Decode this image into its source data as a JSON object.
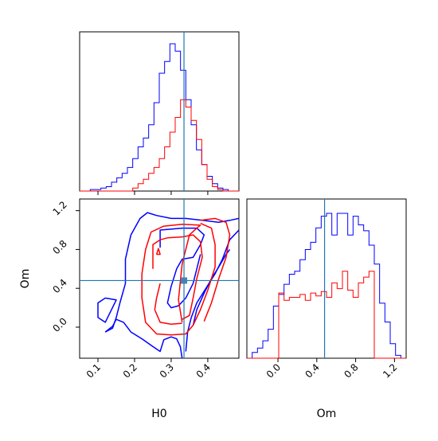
{
  "chart_data": {
    "type": "corner",
    "params": [
      "H0",
      "Om"
    ],
    "truth": {
      "H0": 0.335,
      "Om": 0.48
    },
    "colors": {
      "blue": "#0000ff",
      "red": "#ff0000",
      "truth": "#1f77b4"
    },
    "axes": {
      "H0": {
        "label": "H0",
        "range": [
          0.05,
          0.485
        ],
        "ticks": [
          "0.1",
          "0.2",
          "0.3",
          "0.4"
        ]
      },
      "Om": {
        "label": "Om",
        "range": [
          -0.32,
          1.32
        ],
        "ticks": [
          "0.0",
          "0.4",
          "0.8",
          "1.2"
        ]
      }
    },
    "hist_H0": {
      "edges": [
        0.05,
        0.0645,
        0.079,
        0.0935,
        0.108,
        0.1225,
        0.137,
        0.1515,
        0.166,
        0.1805,
        0.195,
        0.2095,
        0.224,
        0.2385,
        0.253,
        0.2675,
        0.282,
        0.2965,
        0.311,
        0.3255,
        0.34,
        0.3545,
        0.369,
        0.3835,
        0.398,
        0.4125,
        0.427,
        0.4415,
        0.456,
        0.4705,
        0.485
      ],
      "blue": [
        0,
        0,
        0.01,
        0.01,
        0.02,
        0.03,
        0.06,
        0.09,
        0.12,
        0.16,
        0.22,
        0.3,
        0.36,
        0.45,
        0.6,
        0.8,
        0.88,
        1.0,
        0.95,
        0.82,
        0.62,
        0.45,
        0.28,
        0.18,
        0.1,
        0.05,
        0.02,
        0.01,
        0,
        0
      ],
      "red": [
        0,
        0,
        0,
        0,
        0,
        0,
        0,
        0,
        0,
        0,
        0.02,
        0.05,
        0.08,
        0.12,
        0.16,
        0.22,
        0.3,
        0.4,
        0.5,
        0.62,
        0.57,
        0.48,
        0.35,
        0.18,
        0.08,
        0.03,
        0.01,
        0,
        0,
        0
      ]
    },
    "hist_Om": {
      "edges": [
        -0.32,
        -0.2653,
        -0.2107,
        -0.156,
        -0.1013,
        -0.0467,
        0.008,
        0.0627,
        0.1173,
        0.172,
        0.2267,
        0.2813,
        0.336,
        0.3907,
        0.4453,
        0.5,
        0.5547,
        0.6093,
        0.664,
        0.7187,
        0.7733,
        0.828,
        0.8827,
        0.9373,
        0.992,
        1.0467,
        1.1013,
        1.156,
        1.2107,
        1.2653,
        1.32
      ],
      "blue": [
        0,
        0.04,
        0.07,
        0.12,
        0.2,
        0.36,
        0.44,
        0.51,
        0.58,
        0.6,
        0.68,
        0.75,
        0.8,
        0.9,
        0.98,
        1.0,
        0.85,
        1.0,
        1.0,
        0.85,
        0.98,
        0.92,
        0.88,
        0.78,
        0.65,
        0.38,
        0.25,
        0.1,
        0.02,
        0
      ],
      "red": [
        0,
        0,
        0,
        0,
        0,
        0,
        0.45,
        0.4,
        0.42,
        0.42,
        0.44,
        0.4,
        0.45,
        0.43,
        0.46,
        0.42,
        0.52,
        0.48,
        0.6,
        0.47,
        0.42,
        0.52,
        0.56,
        0.6,
        0,
        0,
        0,
        0,
        0,
        0
      ]
    },
    "contours": {
      "blue": [
        [
          [
            0.12,
            -0.05
          ],
          [
            0.14,
            -0.01
          ],
          [
            0.15,
            0.1
          ],
          [
            0.16,
            0.25
          ],
          [
            0.175,
            0.45
          ],
          [
            0.175,
            0.7
          ],
          [
            0.19,
            0.95
          ],
          [
            0.215,
            1.12
          ],
          [
            0.235,
            1.18
          ],
          [
            0.26,
            1.15
          ],
          [
            0.3,
            1.12
          ],
          [
            0.34,
            1.12
          ],
          [
            0.385,
            1.1
          ],
          [
            0.43,
            1.08
          ],
          [
            0.46,
            1.1
          ],
          [
            0.485,
            1.12
          ]
        ],
        [
          [
            0.485,
            1.0
          ],
          [
            0.46,
            0.9
          ],
          [
            0.44,
            0.7
          ],
          [
            0.42,
            0.55
          ],
          [
            0.395,
            0.4
          ],
          [
            0.37,
            0.25
          ],
          [
            0.355,
            0.1
          ],
          [
            0.345,
            -0.05
          ],
          [
            0.34,
            -0.25
          ]
        ],
        [
          [
            0.33,
            -0.32
          ],
          [
            0.325,
            -0.2
          ],
          [
            0.315,
            -0.12
          ],
          [
            0.3,
            -0.1
          ],
          [
            0.28,
            -0.13
          ],
          [
            0.27,
            -0.25
          ],
          [
            0.25,
            -0.2
          ],
          [
            0.22,
            -0.12
          ],
          [
            0.19,
            -0.05
          ],
          [
            0.17,
            0.05
          ],
          [
            0.15,
            0.08
          ],
          [
            0.14,
            0.01
          ],
          [
            0.12,
            -0.05
          ]
        ],
        [
          [
            0.12,
            0.3
          ],
          [
            0.1,
            0.25
          ],
          [
            0.1,
            0.1
          ],
          [
            0.12,
            0.05
          ],
          [
            0.15,
            0.28
          ],
          [
            0.12,
            0.3
          ]
        ],
        [
          [
            0.27,
            0.82
          ],
          [
            0.27,
            1.0
          ],
          [
            0.33,
            1.02
          ],
          [
            0.37,
            1.02
          ],
          [
            0.39,
            0.95
          ],
          [
            0.38,
            0.85
          ],
          [
            0.36,
            0.72
          ],
          [
            0.33,
            0.7
          ],
          [
            0.315,
            0.6
          ],
          [
            0.3,
            0.42
          ],
          [
            0.29,
            0.25
          ],
          [
            0.3,
            0.2
          ],
          [
            0.32,
            0.22
          ],
          [
            0.34,
            0.3
          ],
          [
            0.36,
            0.45
          ],
          [
            0.37,
            0.6
          ],
          [
            0.38,
            0.75
          ]
        ],
        [
          [
            0.36,
            0.02
          ],
          [
            0.37,
            0.18
          ],
          [
            0.39,
            0.35
          ],
          [
            0.41,
            0.5
          ],
          [
            0.43,
            0.62
          ],
          [
            0.45,
            0.75
          ],
          [
            0.46,
            0.8
          ]
        ]
      ],
      "red": [
        [
          [
            0.33,
            0.05
          ],
          [
            0.32,
            0.28
          ],
          [
            0.33,
            0.65
          ],
          [
            0.35,
            0.95
          ],
          [
            0.37,
            1.02
          ],
          [
            0.38,
            1.05
          ],
          [
            0.33,
            1.06
          ],
          [
            0.28,
            1.04
          ],
          [
            0.245,
            0.98
          ],
          [
            0.23,
            0.8
          ],
          [
            0.22,
            0.55
          ],
          [
            0.22,
            0.3
          ],
          [
            0.23,
            0.05
          ],
          [
            0.26,
            -0.07
          ],
          [
            0.3,
            -0.08
          ],
          [
            0.34,
            -0.07
          ],
          [
            0.36,
            0.02
          ],
          [
            0.38,
            0.18
          ],
          [
            0.4,
            0.38
          ],
          [
            0.42,
            0.62
          ],
          [
            0.42,
            0.85
          ],
          [
            0.41,
            1.02
          ],
          [
            0.38,
            1.07
          ]
        ],
        [
          [
            0.25,
            0.6
          ],
          [
            0.25,
            0.85
          ],
          [
            0.27,
            0.9
          ],
          [
            0.29,
            0.92
          ],
          [
            0.33,
            0.93
          ],
          [
            0.36,
            0.95
          ],
          [
            0.38,
            0.88
          ],
          [
            0.385,
            0.72
          ],
          [
            0.37,
            0.5
          ],
          [
            0.36,
            0.3
          ],
          [
            0.35,
            0.12
          ],
          [
            0.33,
            0.08
          ]
        ],
        [
          [
            0.27,
            0.45
          ],
          [
            0.26,
            0.3
          ],
          [
            0.255,
            0.18
          ],
          [
            0.27,
            0.05
          ],
          [
            0.3,
            0.03
          ],
          [
            0.33,
            0.04
          ]
        ],
        [
          [
            0.39,
            0.06
          ],
          [
            0.41,
            0.25
          ],
          [
            0.43,
            0.5
          ],
          [
            0.45,
            0.72
          ],
          [
            0.46,
            0.95
          ],
          [
            0.45,
            1.08
          ],
          [
            0.42,
            1.12
          ],
          [
            0.38,
            1.1
          ]
        ],
        [
          [
            0.26,
            0.75
          ],
          [
            0.265,
            0.81
          ],
          [
            0.27,
            0.75
          ],
          [
            0.26,
            0.75
          ]
        ]
      ]
    },
    "truth_marker": {
      "H0": 0.335,
      "Om": 0.48
    }
  }
}
